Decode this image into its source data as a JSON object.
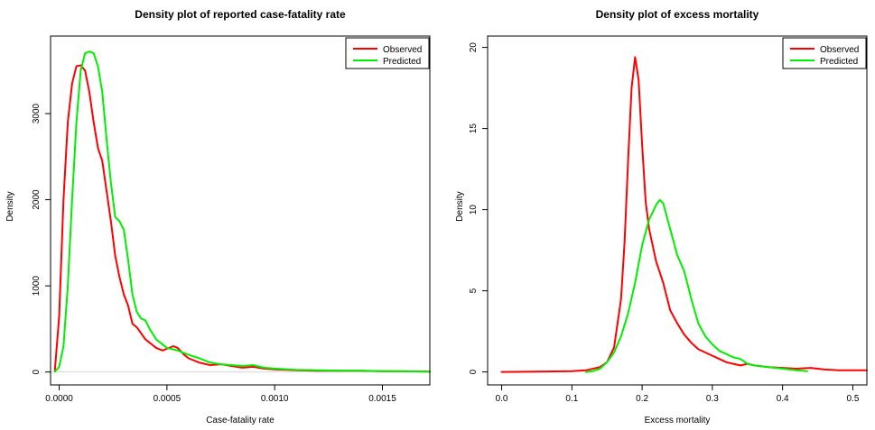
{
  "chart_data": [
    {
      "type": "line",
      "title": "Density plot of reported case-fatality rate",
      "xlabel": "Case-fatality rate",
      "ylabel": "Density",
      "xlim": [
        -4e-05,
        0.00172
      ],
      "ylim": [
        -150,
        3900
      ],
      "xticks": [
        0,
        0.0005,
        0.001,
        0.0015
      ],
      "xtick_labels": [
        "0.0000",
        "0.0005",
        "0.0010",
        "0.0015"
      ],
      "yticks": [
        0,
        1000,
        2000,
        3000
      ],
      "ytick_labels": [
        "0",
        "1000",
        "2000",
        "3000"
      ],
      "zero_line": true,
      "grid": false,
      "legend_position": "top-right",
      "series": [
        {
          "name": "Observed",
          "color": "#ff0000",
          "x": [
            -2e-05,
            0.0,
            2e-05,
            4e-05,
            6e-05,
            8e-05,
            0.0001,
            0.00012,
            0.00014,
            0.00016,
            0.00018,
            0.0002,
            0.00022,
            0.00024,
            0.00026,
            0.00028,
            0.0003,
            0.00032,
            0.00034,
            0.00036,
            0.00038,
            0.0004,
            0.00042,
            0.00045,
            0.00048,
            0.0005,
            0.00053,
            0.00055,
            0.00058,
            0.0006,
            0.00065,
            0.0007,
            0.00075,
            0.0008,
            0.00085,
            0.0009,
            0.00095,
            0.001,
            0.0011,
            0.0012,
            0.0013,
            0.0014,
            0.0015,
            0.0016,
            0.00172
          ],
          "values": [
            20,
            650,
            2000,
            2900,
            3350,
            3550,
            3560,
            3500,
            3250,
            2900,
            2600,
            2450,
            2100,
            1750,
            1350,
            1100,
            900,
            770,
            560,
            520,
            450,
            380,
            340,
            280,
            250,
            270,
            300,
            280,
            200,
            160,
            110,
            80,
            90,
            70,
            50,
            60,
            40,
            30,
            20,
            15,
            15,
            15,
            10,
            8,
            5
          ]
        },
        {
          "name": "Predicted",
          "color": "#00ee00",
          "x": [
            -2e-05,
            0.0,
            2e-05,
            4e-05,
            6e-05,
            8e-05,
            0.0001,
            0.00012,
            0.00014,
            0.00016,
            0.00018,
            0.0002,
            0.00022,
            0.00024,
            0.00026,
            0.00028,
            0.0003,
            0.00032,
            0.00034,
            0.00036,
            0.00038,
            0.0004,
            0.00042,
            0.00045,
            0.00048,
            0.0005,
            0.00055,
            0.0006,
            0.00065,
            0.0007,
            0.00075,
            0.0008,
            0.00085,
            0.0009,
            0.00095,
            0.001,
            0.0011,
            0.0012,
            0.0013,
            0.0014,
            0.0015,
            0.0016,
            0.00172
          ],
          "values": [
            5,
            60,
            300,
            1000,
            2000,
            2900,
            3500,
            3700,
            3720,
            3700,
            3550,
            3250,
            2700,
            2200,
            1800,
            1750,
            1650,
            1300,
            900,
            700,
            620,
            600,
            500,
            380,
            320,
            280,
            250,
            200,
            160,
            110,
            90,
            80,
            70,
            80,
            50,
            40,
            25,
            20,
            15,
            15,
            10,
            8,
            5
          ]
        }
      ]
    },
    {
      "type": "line",
      "title": "Density plot of excess mortality",
      "xlabel": "Excess mortality",
      "ylabel": "Density",
      "xlim": [
        -0.02,
        0.52
      ],
      "ylim": [
        -0.8,
        20.7
      ],
      "xticks": [
        0,
        0.1,
        0.2,
        0.3,
        0.4,
        0.5
      ],
      "xtick_labels": [
        "0.0",
        "0.1",
        "0.2",
        "0.3",
        "0.4",
        "0.5"
      ],
      "yticks": [
        0,
        5,
        10,
        15,
        20
      ],
      "ytick_labels": [
        "0",
        "5",
        "10",
        "15",
        "20"
      ],
      "zero_line": false,
      "grid": false,
      "legend_position": "top-right",
      "series": [
        {
          "name": "Observed",
          "color": "#ff0000",
          "x": [
            0.0,
            0.05,
            0.1,
            0.12,
            0.14,
            0.15,
            0.16,
            0.17,
            0.175,
            0.18,
            0.185,
            0.19,
            0.195,
            0.2,
            0.205,
            0.21,
            0.215,
            0.22,
            0.23,
            0.24,
            0.25,
            0.26,
            0.27,
            0.28,
            0.29,
            0.3,
            0.31,
            0.32,
            0.33,
            0.34,
            0.35,
            0.36,
            0.38,
            0.4,
            0.42,
            0.44,
            0.46,
            0.48,
            0.5,
            0.52
          ],
          "values": [
            0.0,
            0.02,
            0.05,
            0.1,
            0.3,
            0.6,
            1.5,
            4.5,
            8.0,
            13.0,
            17.5,
            19.4,
            18.0,
            14.0,
            10.5,
            8.8,
            7.8,
            6.8,
            5.5,
            3.8,
            3.0,
            2.3,
            1.8,
            1.4,
            1.2,
            1.0,
            0.8,
            0.6,
            0.5,
            0.4,
            0.5,
            0.4,
            0.3,
            0.25,
            0.2,
            0.25,
            0.15,
            0.1,
            0.1,
            0.1
          ]
        },
        {
          "name": "Predicted",
          "color": "#00ee00",
          "x": [
            0.12,
            0.13,
            0.14,
            0.15,
            0.16,
            0.17,
            0.18,
            0.19,
            0.2,
            0.21,
            0.22,
            0.225,
            0.23,
            0.24,
            0.25,
            0.26,
            0.27,
            0.28,
            0.29,
            0.3,
            0.31,
            0.32,
            0.33,
            0.34,
            0.35,
            0.36,
            0.38,
            0.4,
            0.42,
            0.435
          ],
          "values": [
            0.0,
            0.05,
            0.2,
            0.6,
            1.2,
            2.2,
            3.6,
            5.5,
            7.8,
            9.4,
            10.3,
            10.6,
            10.4,
            8.8,
            7.2,
            6.2,
            4.5,
            3.0,
            2.2,
            1.7,
            1.3,
            1.1,
            0.9,
            0.8,
            0.5,
            0.4,
            0.3,
            0.2,
            0.1,
            0.05
          ]
        }
      ]
    }
  ]
}
